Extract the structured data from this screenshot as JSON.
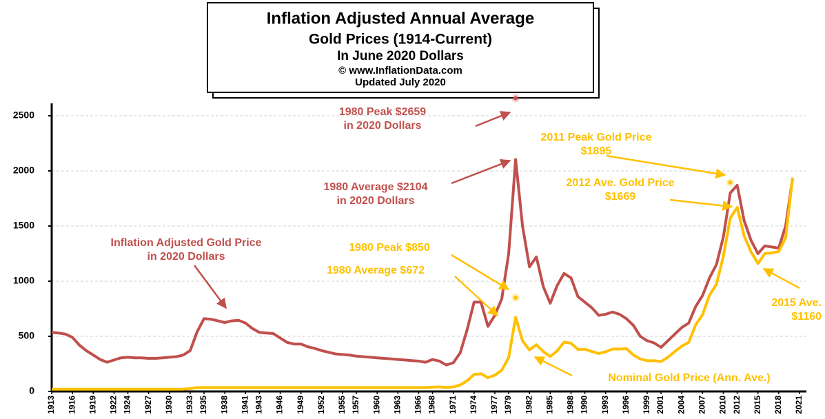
{
  "chart_data": {
    "type": "line",
    "title_lines": [
      "Inflation Adjusted Annual Average",
      "Gold Prices (1914-Current)",
      "In June 2020 Dollars",
      "© www.InflationData.com",
      "Updated July 2020"
    ],
    "x": [
      1913,
      1914,
      1915,
      1916,
      1917,
      1918,
      1919,
      1920,
      1921,
      1922,
      1923,
      1924,
      1925,
      1926,
      1927,
      1928,
      1929,
      1930,
      1931,
      1932,
      1933,
      1934,
      1935,
      1936,
      1937,
      1938,
      1939,
      1940,
      1941,
      1942,
      1943,
      1944,
      1945,
      1946,
      1947,
      1948,
      1949,
      1950,
      1951,
      1952,
      1953,
      1954,
      1955,
      1956,
      1957,
      1958,
      1959,
      1960,
      1961,
      1962,
      1963,
      1964,
      1965,
      1966,
      1967,
      1968,
      1969,
      1970,
      1971,
      1972,
      1973,
      1974,
      1975,
      1976,
      1977,
      1978,
      1979,
      1980,
      1981,
      1982,
      1983,
      1984,
      1985,
      1986,
      1987,
      1988,
      1989,
      1990,
      1991,
      1992,
      1993,
      1994,
      1995,
      1996,
      1997,
      1998,
      1999,
      2000,
      2001,
      2002,
      2003,
      2004,
      2005,
      2006,
      2007,
      2008,
      2009,
      2010,
      2011,
      2012,
      2013,
      2014,
      2015,
      2016,
      2017,
      2018,
      2019,
      2020
    ],
    "series": [
      {
        "color": "#c0504d",
        "values": [
          535,
          530,
          520,
          490,
          420,
          370,
          330,
          290,
          265,
          285,
          305,
          310,
          305,
          305,
          300,
          300,
          305,
          310,
          315,
          330,
          370,
          540,
          660,
          655,
          640,
          625,
          640,
          645,
          620,
          570,
          535,
          530,
          525,
          485,
          445,
          430,
          430,
          405,
          390,
          370,
          355,
          340,
          335,
          330,
          320,
          315,
          310,
          305,
          300,
          295,
          290,
          285,
          280,
          275,
          265,
          290,
          275,
          240,
          260,
          350,
          560,
          810,
          810,
          590,
          690,
          840,
          1250,
          2104,
          1500,
          1130,
          1220,
          950,
          800,
          960,
          1070,
          1030,
          860,
          810,
          760,
          690,
          700,
          720,
          700,
          660,
          600,
          500,
          460,
          440,
          400,
          460,
          520,
          580,
          620,
          770,
          870,
          1030,
          1150,
          1400,
          1800,
          1870,
          1550,
          1370,
          1250,
          1320,
          1310,
          1300,
          1500,
          1930
        ]
      },
      {
        "color": "#ffc000",
        "values": [
          20.67,
          20.67,
          20.67,
          20.67,
          20.67,
          20.67,
          20.67,
          20.67,
          20.67,
          20.67,
          20.67,
          20.67,
          20.67,
          20.67,
          20.67,
          20.67,
          20.67,
          20.67,
          20.67,
          20.67,
          26,
          35,
          35,
          35,
          35,
          35,
          35,
          35,
          35,
          35,
          35,
          35,
          35,
          35,
          35,
          35,
          35,
          35,
          35,
          35,
          35,
          35,
          35,
          35,
          35,
          35,
          35,
          35,
          35,
          35,
          35,
          35,
          35,
          35,
          35,
          39,
          41,
          36,
          41,
          58,
          97,
          154,
          161,
          125,
          148,
          193,
          307,
          672,
          460,
          376,
          424,
          361,
          317,
          368,
          447,
          437,
          381,
          383,
          362,
          344,
          360,
          384,
          384,
          388,
          331,
          294,
          279,
          279,
          271,
          310,
          363,
          410,
          445,
          604,
          696,
          872,
          972,
          1225,
          1572,
          1669,
          1411,
          1266,
          1160,
          1251,
          1257,
          1268,
          1393,
          1940
        ]
      }
    ],
    "markers": [
      {
        "x": 1980,
        "value": 2659,
        "color": "#c0504d"
      },
      {
        "x": 1980,
        "value": 850,
        "color": "#ffc000"
      },
      {
        "x": 2011,
        "value": 1895,
        "color": "#ffc000"
      }
    ],
    "annotations": [
      {
        "lines": [
          "1980 Peak $2659",
          "in 2020 Dollars"
        ],
        "color": "#c0504d"
      },
      {
        "lines": [
          "2011 Peak  Gold Price",
          "$1895"
        ],
        "color": "#ffc000"
      },
      {
        "lines": [
          "1980 Average $2104",
          "in 2020 Dollars"
        ],
        "color": "#c0504d"
      },
      {
        "lines": [
          "2012 Ave. Gold Price",
          "$1669"
        ],
        "color": "#ffc000"
      },
      {
        "lines": [
          "Inflation Adjusted Gold Price",
          "in 2020 Dollars"
        ],
        "color": "#c0504d"
      },
      {
        "lines": [
          "1980 Peak $850"
        ],
        "color": "#ffc000"
      },
      {
        "lines": [
          "1980 Average $672"
        ],
        "color": "#ffc000"
      },
      {
        "lines": [
          "2015 Ave.",
          "$1160"
        ],
        "color": "#ffc000"
      },
      {
        "lines": [
          "Nominal Gold Price (Ann. Ave.)"
        ],
        "color": "#ffc000"
      }
    ],
    "xlim": [
      1913,
      2021
    ],
    "xticks": [
      1913,
      1916,
      1919,
      1922,
      1924,
      1927,
      1930,
      1933,
      1935,
      1938,
      1941,
      1943,
      1946,
      1949,
      1952,
      1955,
      1957,
      1960,
      1963,
      1966,
      1968,
      1971,
      1974,
      1977,
      1979,
      1982,
      1985,
      1988,
      1990,
      1993,
      1996,
      1999,
      2001,
      2004,
      2007,
      2010,
      2012,
      2015,
      2018,
      2021
    ],
    "ylim": [
      0,
      2700
    ],
    "yticks": [
      0,
      500,
      1000,
      1500,
      2000,
      2500
    ],
    "grid": true
  }
}
